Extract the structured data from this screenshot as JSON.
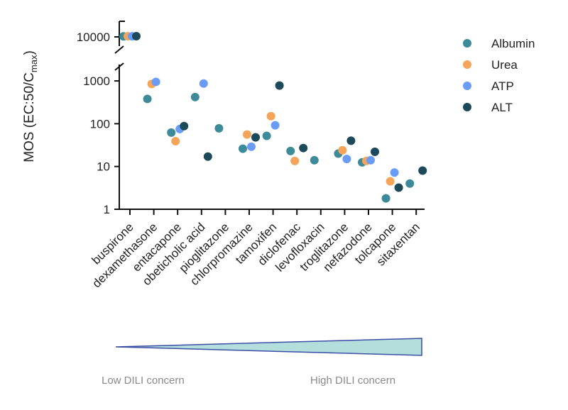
{
  "chart_data": {
    "type": "scatter",
    "ylabel": {
      "prefix": "MOS (EC:50/C",
      "subscript": "max",
      "suffix": ")"
    },
    "y_scale": "log",
    "y_axis_break": true,
    "y_ticks": [
      "1",
      "10",
      "100",
      "1000"
    ],
    "y_ticks_upper": [
      "10000"
    ],
    "ylim": [
      1,
      10000
    ],
    "grid": false,
    "legend_position": "right",
    "categories": [
      "buspirone",
      "dexamethasone",
      "entacapone",
      "obeticholic acid",
      "pioglitazone",
      "chlorpromazine",
      "tamoxifen",
      "diclofenac",
      "levofloxacin",
      "troglitazone",
      "nefazodone",
      "tolcapone",
      "sitaxentan"
    ],
    "series": [
      {
        "name": "Albumin",
        "color": "#3d8a98",
        "values": [
          13000,
          380,
          62,
          420,
          78,
          26,
          52,
          23,
          14,
          20,
          12.5,
          1.8,
          4
        ]
      },
      {
        "name": "Urea",
        "color": "#f4a55a",
        "values": [
          14000,
          850,
          39,
          null,
          null,
          56,
          150,
          13.5,
          null,
          24,
          13.5,
          4.5,
          null
        ]
      },
      {
        "name": "ATP",
        "color": "#6a9cf5",
        "values": [
          13500,
          950,
          75,
          870,
          null,
          29,
          92,
          null,
          null,
          15,
          14,
          7.2,
          null
        ]
      },
      {
        "name": "ALT",
        "color": "#1c4a5a",
        "values": [
          14000,
          null,
          88,
          17,
          null,
          48,
          780,
          27,
          null,
          40,
          22,
          3.2,
          8
        ]
      }
    ],
    "gradient": {
      "low_label": "Low DILI concern",
      "high_label": "High DILI concern",
      "fill_color": "#b3dedb",
      "stroke_color": "#3b4fa6"
    }
  }
}
